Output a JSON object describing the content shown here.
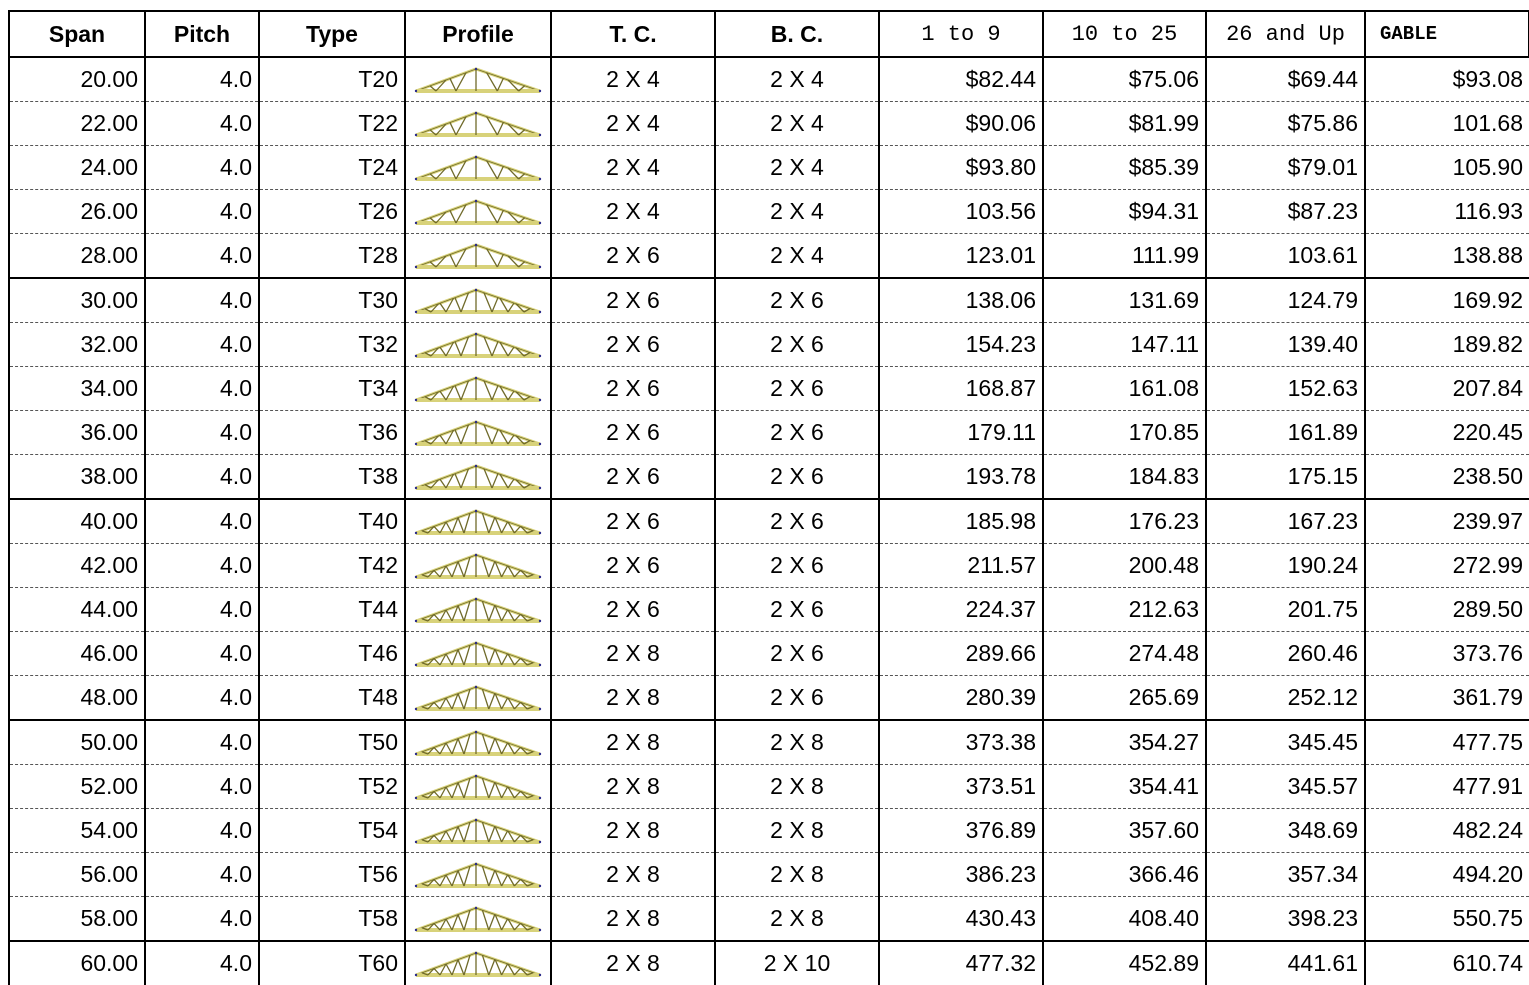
{
  "headers": {
    "span": "Span",
    "pitch": "Pitch",
    "type": "Type",
    "profile": "Profile",
    "tc": "T. C.",
    "bc": "B. C.",
    "p1": "1 to 9",
    "p2": "10 to 25",
    "p3": "26 and Up",
    "gable": "GABLE"
  },
  "colors": {
    "truss_fill": "#d8d27a",
    "truss_stroke": "#6f6a2a",
    "joint": "#2a2a8a"
  },
  "profile_icon": "truss-profile-icon",
  "rows": [
    {
      "span": "20.00",
      "pitch": "4.0",
      "type": "T20",
      "tc": "2 X 4",
      "bc": "2 X 4",
      "p1": "$82.44",
      "p2": "$75.06",
      "p3": "$69.44",
      "gable": "$93.08"
    },
    {
      "span": "22.00",
      "pitch": "4.0",
      "type": "T22",
      "tc": "2 X 4",
      "bc": "2 X 4",
      "p1": "$90.06",
      "p2": "$81.99",
      "p3": "$75.86",
      "gable": "101.68"
    },
    {
      "span": "24.00",
      "pitch": "4.0",
      "type": "T24",
      "tc": "2 X 4",
      "bc": "2 X 4",
      "p1": "$93.80",
      "p2": "$85.39",
      "p3": "$79.01",
      "gable": "105.90"
    },
    {
      "span": "26.00",
      "pitch": "4.0",
      "type": "T26",
      "tc": "2 X 4",
      "bc": "2 X 4",
      "p1": "103.56",
      "p2": "$94.31",
      "p3": "$87.23",
      "gable": "116.93"
    },
    {
      "span": "28.00",
      "pitch": "4.0",
      "type": "T28",
      "tc": "2 X 6",
      "bc": "2 X 4",
      "p1": "123.01",
      "p2": "111.99",
      "p3": "103.61",
      "gable": "138.88"
    },
    {
      "span": "30.00",
      "pitch": "4.0",
      "type": "T30",
      "tc": "2 X 6",
      "bc": "2 X 6",
      "p1": "138.06",
      "p2": "131.69",
      "p3": "124.79",
      "gable": "169.92"
    },
    {
      "span": "32.00",
      "pitch": "4.0",
      "type": "T32",
      "tc": "2 X 6",
      "bc": "2 X 6",
      "p1": "154.23",
      "p2": "147.11",
      "p3": "139.40",
      "gable": "189.82"
    },
    {
      "span": "34.00",
      "pitch": "4.0",
      "type": "T34",
      "tc": "2 X 6",
      "bc": "2 X 6",
      "p1": "168.87",
      "p2": "161.08",
      "p3": "152.63",
      "gable": "207.84"
    },
    {
      "span": "36.00",
      "pitch": "4.0",
      "type": "T36",
      "tc": "2 X 6",
      "bc": "2 X 6",
      "p1": "179.11",
      "p2": "170.85",
      "p3": "161.89",
      "gable": "220.45"
    },
    {
      "span": "38.00",
      "pitch": "4.0",
      "type": "T38",
      "tc": "2 X 6",
      "bc": "2 X 6",
      "p1": "193.78",
      "p2": "184.83",
      "p3": "175.15",
      "gable": "238.50"
    },
    {
      "span": "40.00",
      "pitch": "4.0",
      "type": "T40",
      "tc": "2 X 6",
      "bc": "2 X 6",
      "p1": "185.98",
      "p2": "176.23",
      "p3": "167.23",
      "gable": "239.97"
    },
    {
      "span": "42.00",
      "pitch": "4.0",
      "type": "T42",
      "tc": "2 X 6",
      "bc": "2 X 6",
      "p1": "211.57",
      "p2": "200.48",
      "p3": "190.24",
      "gable": "272.99"
    },
    {
      "span": "44.00",
      "pitch": "4.0",
      "type": "T44",
      "tc": "2 X 6",
      "bc": "2 X 6",
      "p1": "224.37",
      "p2": "212.63",
      "p3": "201.75",
      "gable": "289.50"
    },
    {
      "span": "46.00",
      "pitch": "4.0",
      "type": "T46",
      "tc": "2 X 8",
      "bc": "2 X 6",
      "p1": "289.66",
      "p2": "274.48",
      "p3": "260.46",
      "gable": "373.76"
    },
    {
      "span": "48.00",
      "pitch": "4.0",
      "type": "T48",
      "tc": "2 X 8",
      "bc": "2 X 6",
      "p1": "280.39",
      "p2": "265.69",
      "p3": "252.12",
      "gable": "361.79"
    },
    {
      "span": "50.00",
      "pitch": "4.0",
      "type": "T50",
      "tc": "2 X 8",
      "bc": "2 X 8",
      "p1": "373.38",
      "p2": "354.27",
      "p3": "345.45",
      "gable": "477.75"
    },
    {
      "span": "52.00",
      "pitch": "4.0",
      "type": "T52",
      "tc": "2 X 8",
      "bc": "2 X 8",
      "p1": "373.51",
      "p2": "354.41",
      "p3": "345.57",
      "gable": "477.91"
    },
    {
      "span": "54.00",
      "pitch": "4.0",
      "type": "T54",
      "tc": "2 X 8",
      "bc": "2 X 8",
      "p1": "376.89",
      "p2": "357.60",
      "p3": "348.69",
      "gable": "482.24"
    },
    {
      "span": "56.00",
      "pitch": "4.0",
      "type": "T56",
      "tc": "2 X 8",
      "bc": "2 X 8",
      "p1": "386.23",
      "p2": "366.46",
      "p3": "357.34",
      "gable": "494.20"
    },
    {
      "span": "58.00",
      "pitch": "4.0",
      "type": "T58",
      "tc": "2 X 8",
      "bc": "2 X 8",
      "p1": "430.43",
      "p2": "408.40",
      "p3": "398.23",
      "gable": "550.75"
    },
    {
      "span": "60.00",
      "pitch": "4.0",
      "type": "T60",
      "tc": "2 X 8",
      "bc": "2 X 10",
      "p1": "477.32",
      "p2": "452.89",
      "p3": "441.61",
      "gable": "610.74"
    }
  ]
}
